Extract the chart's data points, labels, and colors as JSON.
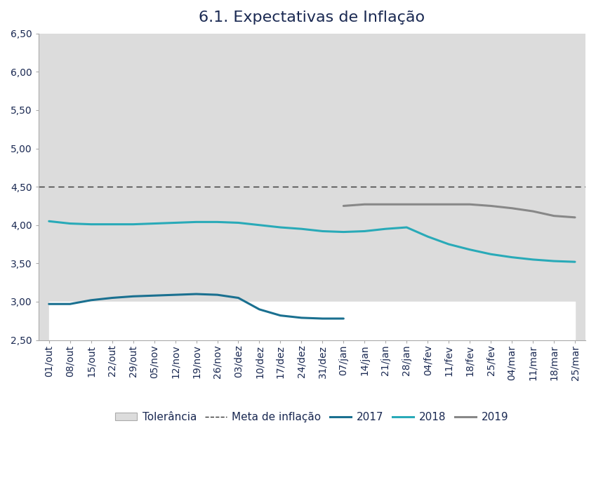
{
  "title": "6.1. Expectativas de Inflação",
  "title_fontsize": 16,
  "title_color": "#1a2952",
  "bg_color": "#ffffff",
  "plot_bg_color": "#dcdcdc",
  "ylim": [
    2.5,
    6.5
  ],
  "yticks": [
    2.5,
    3.0,
    3.5,
    4.0,
    4.5,
    5.0,
    5.5,
    6.0,
    6.5
  ],
  "tolerance_lower": 3.0,
  "tolerance_upper": 6.0,
  "meta_inflacao": 4.5,
  "x_labels": [
    "01/out",
    "08/out",
    "15/out",
    "22/out",
    "29/out",
    "05/nov",
    "12/nov",
    "19/nov",
    "26/nov",
    "03/dez",
    "10/dez",
    "17/dez",
    "24/dez",
    "31/dez",
    "07/jan",
    "14/jan",
    "21/jan",
    "28/jan",
    "04/fev",
    "11/fev",
    "18/fev",
    "25/fev",
    "04/mar",
    "11/mar",
    "18/mar",
    "25/mar"
  ],
  "line_2017": [
    2.97,
    2.97,
    3.02,
    3.05,
    3.07,
    3.08,
    3.09,
    3.1,
    3.09,
    3.05,
    2.9,
    2.82,
    2.79,
    2.78,
    2.78,
    null,
    null,
    null,
    null,
    null,
    null,
    null,
    null,
    null,
    null,
    null
  ],
  "line_2018": [
    4.05,
    4.02,
    4.01,
    4.01,
    4.01,
    4.02,
    4.03,
    4.04,
    4.04,
    4.03,
    4.0,
    3.97,
    3.95,
    3.92,
    3.91,
    3.92,
    3.95,
    3.97,
    3.85,
    3.75,
    3.68,
    3.62,
    3.58,
    3.55,
    3.53,
    3.52
  ],
  "line_2019": [
    null,
    null,
    null,
    null,
    null,
    null,
    null,
    null,
    null,
    null,
    null,
    null,
    null,
    null,
    4.25,
    4.27,
    4.27,
    4.27,
    4.27,
    4.27,
    4.27,
    4.25,
    4.22,
    4.18,
    4.12,
    4.1
  ],
  "color_2017": "#1a7090",
  "color_2018": "#29aab8",
  "color_2019": "#888888",
  "line_width": 2.2,
  "legend_labels": [
    "Tolerância",
    "Meta de inflação",
    "2017",
    "2018",
    "2019"
  ],
  "legend_fontsize": 11,
  "tick_fontsize": 10,
  "tick_color": "#1a2952"
}
